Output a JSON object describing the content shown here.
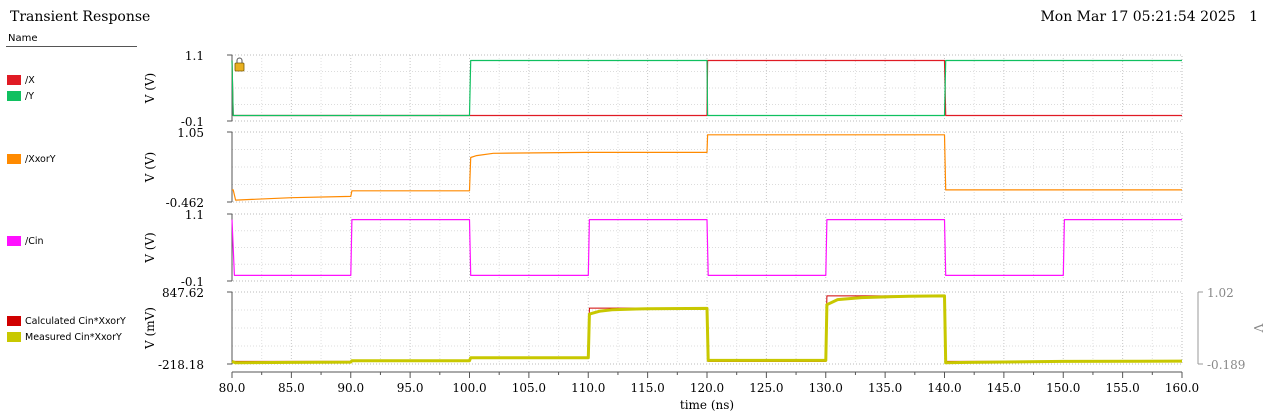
{
  "header": {
    "title": "Transient Response",
    "timestamp": "Mon Mar 17 05:21:54 2025",
    "page_number": "1",
    "name_column": "Name"
  },
  "colors": {
    "X": "#e01b24",
    "Y": "#10c060",
    "XxorY": "#ff8a00",
    "Cin": "#ff10ff",
    "measured": "#c8c800",
    "calculated": "#d00000"
  },
  "chart_data": {
    "type": "line",
    "xlabel": "time (ns)",
    "xlim": [
      80,
      160
    ],
    "xticks": [
      "80.0",
      "85.0",
      "90.0",
      "95.0",
      "100.0",
      "105.0",
      "110.0",
      "115.0",
      "120.0",
      "125.0",
      "130.0",
      "135.0",
      "140.0",
      "145.0",
      "150.0",
      "155.0",
      "160.0"
    ],
    "panels": [
      {
        "ylabel": "V (V)",
        "ylim": [
          -0.1,
          1.1
        ],
        "ytick_top": "1.1",
        "ytick_bottom": "-0.1",
        "series": [
          {
            "name": "/X",
            "color_key": "X",
            "legend_label": "/X",
            "x": [
              80,
              80.1,
              120,
              120.05,
              140,
              140.1,
              160
            ],
            "y": [
              1.0,
              0.0,
              0.0,
              1.0,
              1.0,
              0.0,
              0.0
            ]
          },
          {
            "name": "/Y",
            "color_key": "Y",
            "legend_label": "/Y",
            "x": [
              80,
              80.1,
              100,
              100.1,
              120,
              120.05,
              140,
              140.1,
              160
            ],
            "y": [
              1.0,
              0.0,
              0.0,
              1.0,
              1.0,
              0.0,
              0.0,
              1.0,
              1.0
            ]
          }
        ]
      },
      {
        "ylabel": "V (V)",
        "ylim": [
          -0.462,
          1.05
        ],
        "ytick_top": "1.05",
        "ytick_bottom": "-0.462",
        "series": [
          {
            "name": "/XxorY",
            "color_key": "XxorY",
            "legend_label": "/XxorY",
            "x": [
              80,
              80.1,
              80.3,
              85,
              90,
              90.1,
              100,
              100.1,
              100.6,
              102,
              110,
              120,
              120.05,
              120.1,
              140,
              140.1,
              160
            ],
            "y": [
              -0.2,
              -0.2,
              -0.42,
              -0.37,
              -0.34,
              -0.22,
              -0.22,
              0.5,
              0.54,
              0.59,
              0.61,
              0.61,
              0.99,
              0.99,
              0.99,
              -0.2,
              -0.2
            ]
          }
        ]
      },
      {
        "ylabel": "V (V)",
        "ylim": [
          -0.1,
          1.1
        ],
        "ytick_top": "1.1",
        "ytick_bottom": "-0.1",
        "series": [
          {
            "name": "/Cin",
            "color_key": "Cin",
            "legend_label": "/Cin",
            "x": [
              80,
              80.2,
              90,
              90.1,
              100,
              100.1,
              110,
              110.1,
              120,
              120.1,
              130,
              130.1,
              140,
              140.1,
              150,
              150.1,
              160
            ],
            "y": [
              1.0,
              0.0,
              0.0,
              1.0,
              1.0,
              0.0,
              0.0,
              1.0,
              1.0,
              0.0,
              0.0,
              1.0,
              1.0,
              0.0,
              0.0,
              1.0,
              1.0
            ]
          }
        ]
      },
      {
        "ylabel": "V (mV)",
        "ylim": [
          -218.18,
          847.62
        ],
        "ytick_top": "847.62",
        "ytick_bottom": "-218.18",
        "right_axis": {
          "label": "V",
          "top": "1.02",
          "bottom": "-0.189"
        },
        "series": [
          {
            "name": "Calculated Cin*XxorY",
            "color_key": "calculated",
            "legend_label": "Calculated Cin*XxorY",
            "x": [
              80,
              90,
              90.1,
              100,
              100.1,
              110,
              110.1,
              120,
              120.1,
              130,
              130.1,
              140,
              140.1,
              150,
              150.1,
              160
            ],
            "y": [
              -180,
              -180,
              -180,
              -180,
              -120,
              -120,
              610,
              610,
              -180,
              -180,
              790,
              790,
              -180,
              -180,
              -180,
              -180
            ],
            "width": 1
          },
          {
            "name": "Measured Cin*XxorY",
            "color_key": "measured",
            "legend_label": "Measured Cin*XxorY",
            "x": [
              80,
              80.3,
              85,
              90,
              90.1,
              100,
              100.1,
              110,
              110.1,
              111,
              112,
              115,
              120,
              120.1,
              130,
              130.1,
              131,
              133,
              137,
              140,
              140.1,
              142,
              150,
              150.1,
              160
            ],
            "y": [
              -180,
              -200,
              -195,
              -190,
              -170,
              -170,
              -125,
              -125,
              520,
              565,
              585,
              600,
              605,
              -165,
              -165,
              660,
              735,
              765,
              785,
              790,
              -200,
              -195,
              -180,
              -180,
              -175
            ],
            "width": 3
          }
        ]
      }
    ]
  }
}
